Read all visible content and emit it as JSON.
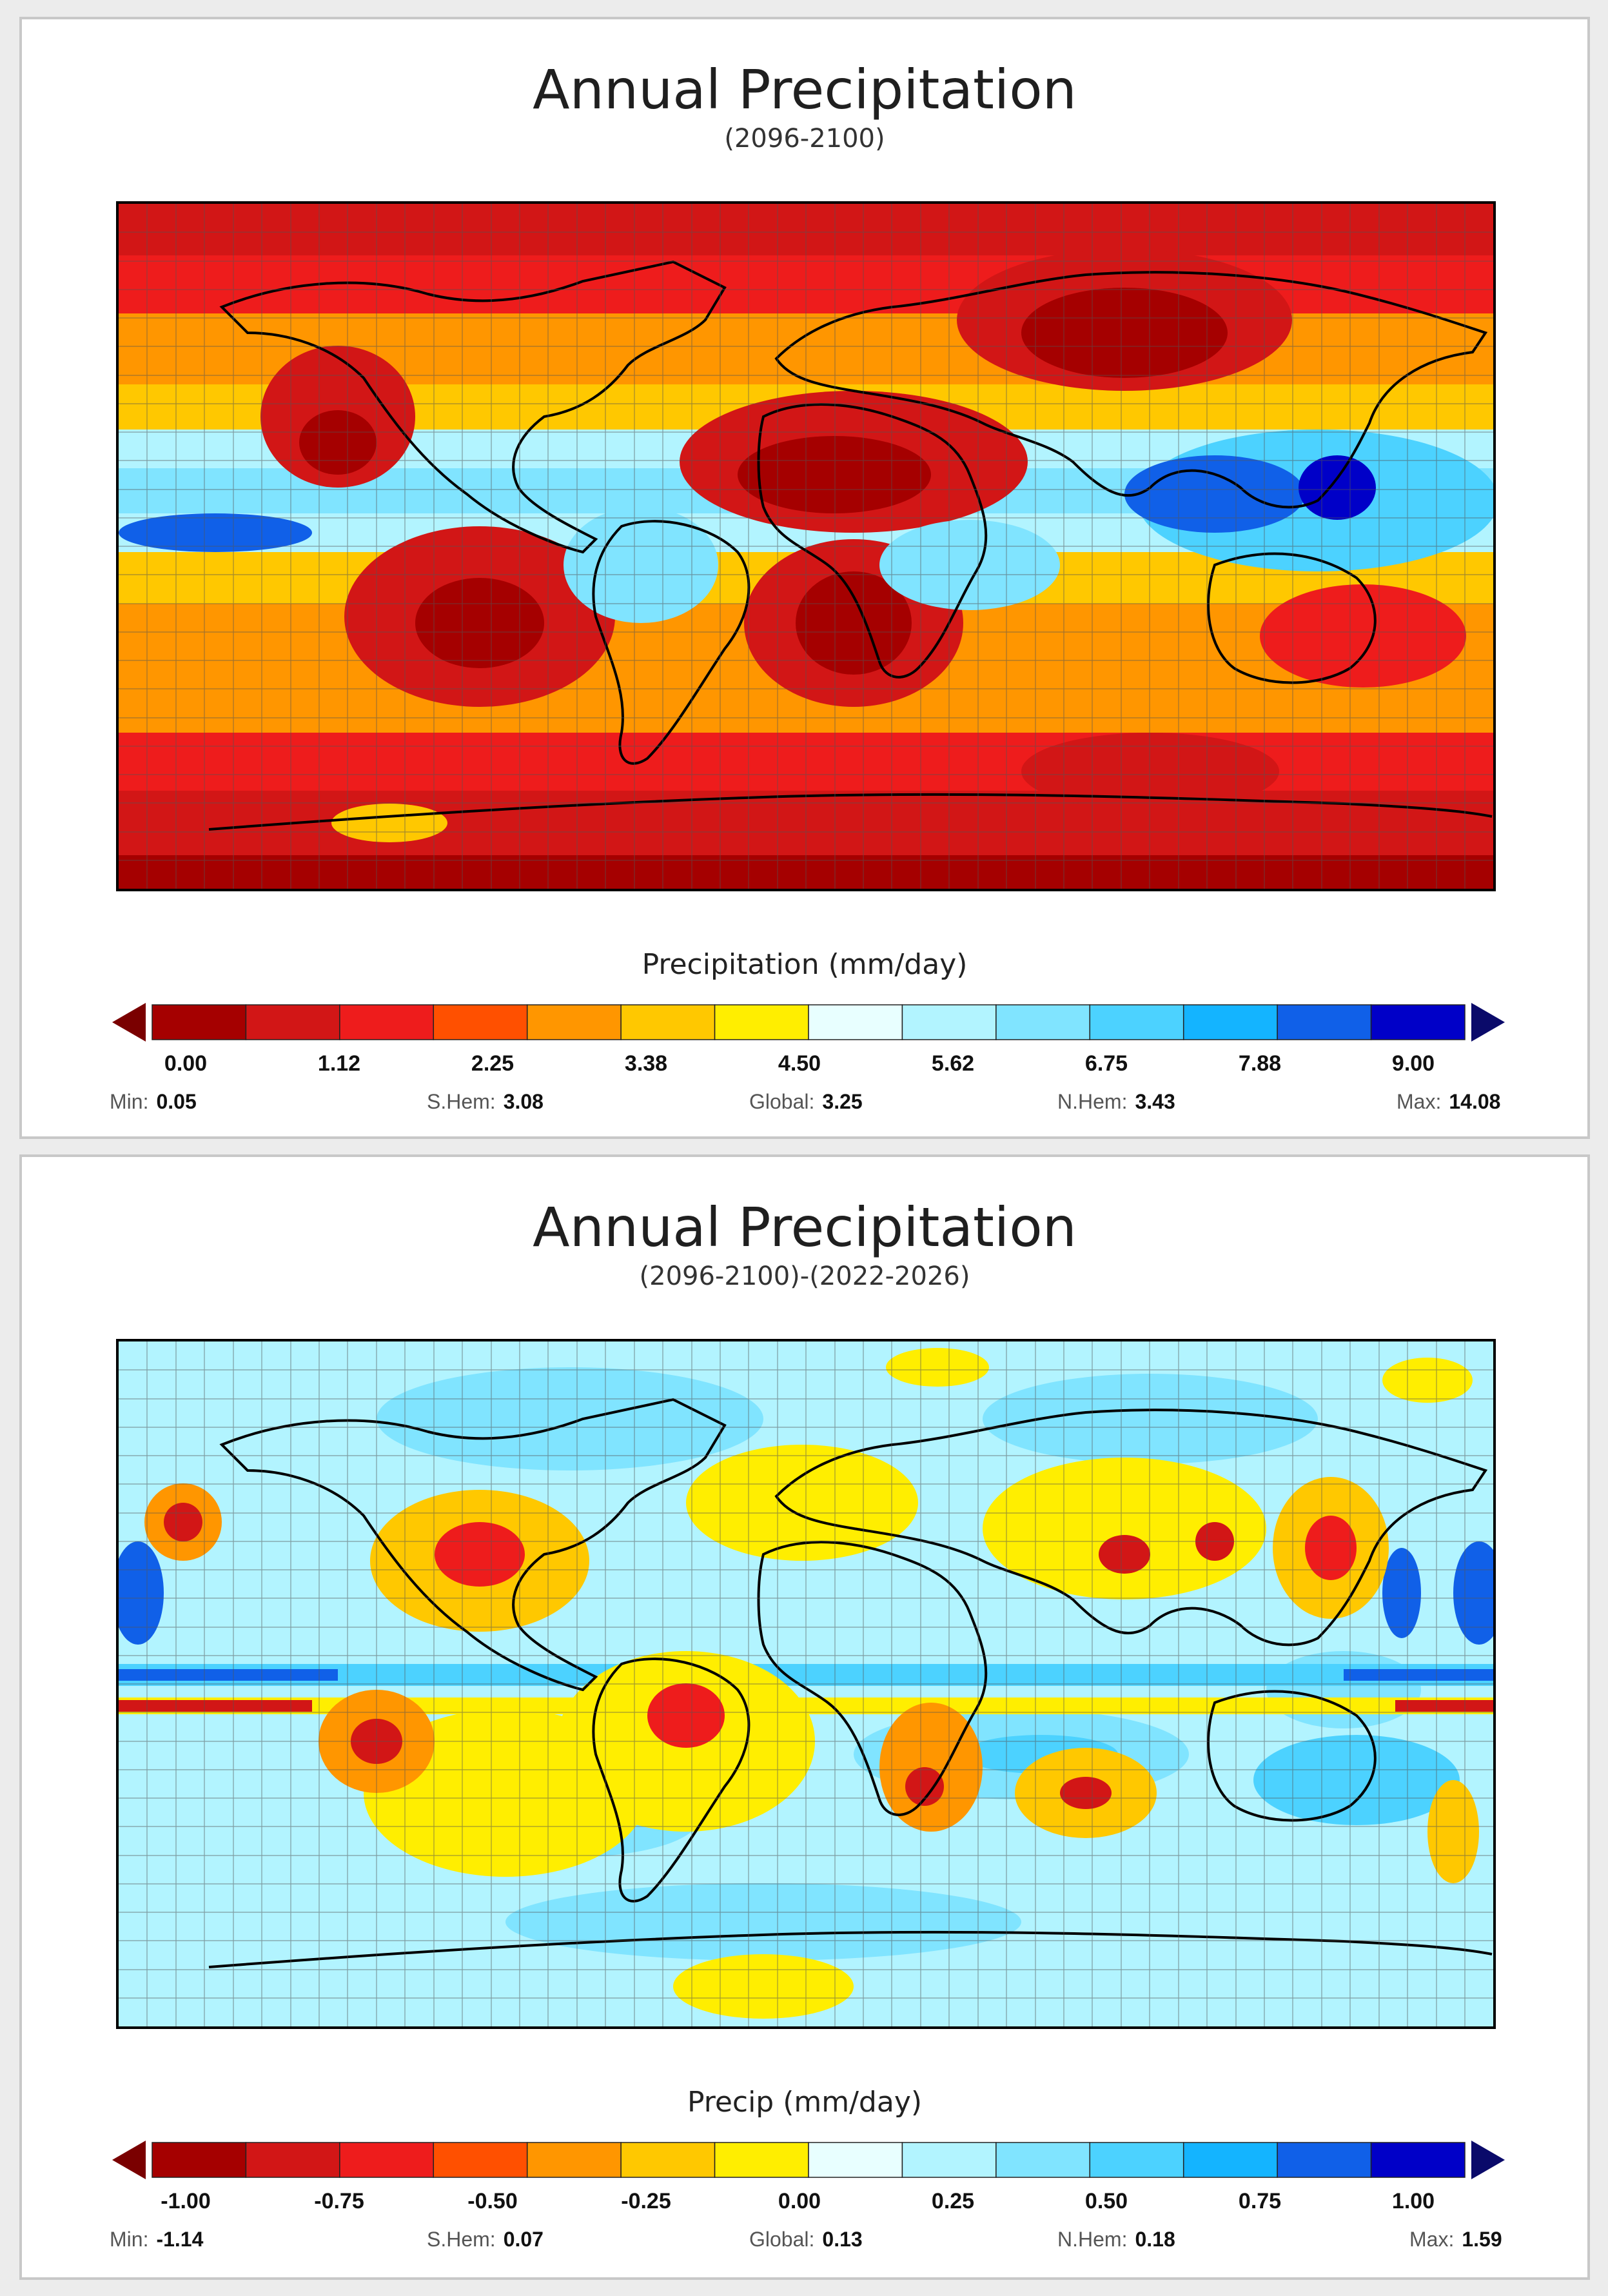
{
  "panels": [
    {
      "title": "Annual Precipitation",
      "subtitle": "(2096-2100)",
      "colorbar_label": "Precipitation (mm/day)",
      "colors": [
        "#a50000",
        "#d21616",
        "#ee1c1c",
        "#ff5000",
        "#ff9600",
        "#ffc800",
        "#ffee00",
        "#e8ffff",
        "#b2f4ff",
        "#80e4ff",
        "#4cd2ff",
        "#14b4ff",
        "#1060e8",
        "#0000c8"
      ],
      "tick_labels": [
        "0.00",
        "1.12",
        "2.25",
        "3.38",
        "4.50",
        "5.62",
        "6.75",
        "7.88",
        "9.00"
      ],
      "stats": {
        "min_label": "Min:",
        "min": "0.05",
        "shem_label": "S.Hem:",
        "shem": "3.08",
        "global_label": "Global:",
        "global": "3.25",
        "nhem_label": "N.Hem:",
        "nhem": "3.43",
        "max_label": "Max:",
        "max": "14.08"
      }
    },
    {
      "title": "Annual Precipitation",
      "subtitle": "(2096-2100)-(2022-2026)",
      "colorbar_label": "Precip (mm/day)",
      "colors": [
        "#a50000",
        "#d21616",
        "#ee1c1c",
        "#ff5000",
        "#ff9600",
        "#ffc800",
        "#ffee00",
        "#e8ffff",
        "#b2f4ff",
        "#80e4ff",
        "#4cd2ff",
        "#14b4ff",
        "#1060e8",
        "#0000c8"
      ],
      "tick_labels": [
        "-1.00",
        "-0.75",
        "-0.50",
        "-0.25",
        "0.00",
        "0.25",
        "0.50",
        "0.75",
        "1.00"
      ],
      "stats": {
        "min_label": "Min:",
        "min": "-1.14",
        "shem_label": "S.Hem:",
        "shem": "0.07",
        "global_label": "Global:",
        "global": "0.13",
        "nhem_label": "N.Hem:",
        "nhem": "0.18",
        "max_label": "Max:",
        "max": "1.59"
      }
    }
  ]
}
